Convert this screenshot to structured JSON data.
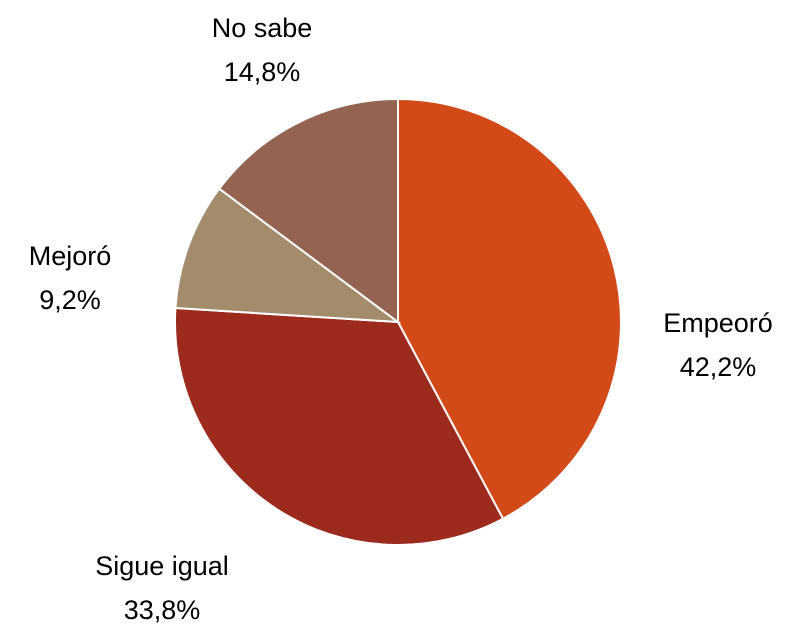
{
  "chart_data": {
    "type": "pie",
    "categories": [
      "Empeoró",
      "Sigue igual",
      "Mejoró",
      "No sabe"
    ],
    "values": [
      42.2,
      33.8,
      9.2,
      14.8
    ],
    "value_labels": [
      "42,2%",
      "33,8%",
      "9,2%",
      "14,8%"
    ],
    "colors": [
      "#D14A18",
      "#9C2B1E",
      "#A38C6C",
      "#946351"
    ]
  }
}
